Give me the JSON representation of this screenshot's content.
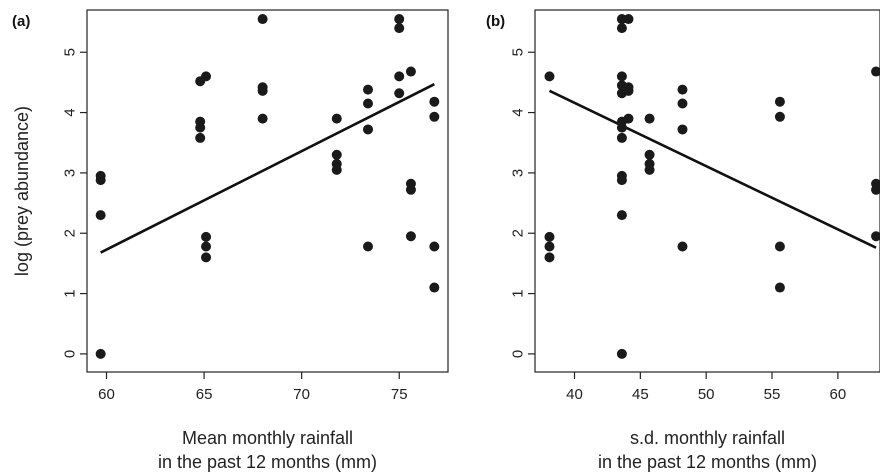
{
  "chart_data": [
    {
      "type": "scatter",
      "panel_label": "(a)",
      "xlabel": [
        "Mean monthly rainfall",
        "in the past 12 months (mm)"
      ],
      "ylabel": "log (prey abundance)",
      "xlim": [
        59,
        77.5
      ],
      "ylim": [
        -0.3,
        5.7
      ],
      "xticks": [
        60,
        65,
        70,
        75
      ],
      "yticks": [
        0,
        1,
        2,
        3,
        4,
        5
      ],
      "grid": false,
      "points": [
        [
          59.7,
          0.0
        ],
        [
          59.7,
          2.3
        ],
        [
          59.7,
          2.88
        ],
        [
          59.7,
          2.95
        ],
        [
          64.8,
          3.58
        ],
        [
          64.8,
          3.75
        ],
        [
          64.8,
          3.85
        ],
        [
          64.8,
          4.52
        ],
        [
          65.1,
          1.6
        ],
        [
          65.1,
          1.78
        ],
        [
          65.1,
          1.94
        ],
        [
          65.1,
          4.6
        ],
        [
          68.0,
          3.9
        ],
        [
          68.0,
          4.36
        ],
        [
          68.0,
          4.42
        ],
        [
          68.0,
          5.55
        ],
        [
          71.8,
          3.05
        ],
        [
          71.8,
          3.15
        ],
        [
          71.8,
          3.3
        ],
        [
          71.8,
          3.9
        ],
        [
          73.4,
          1.78
        ],
        [
          73.4,
          3.72
        ],
        [
          73.4,
          4.15
        ],
        [
          73.4,
          4.38
        ],
        [
          75.0,
          4.32
        ],
        [
          75.0,
          4.6
        ],
        [
          75.0,
          5.4
        ],
        [
          75.0,
          5.55
        ],
        [
          75.6,
          1.95
        ],
        [
          75.6,
          2.72
        ],
        [
          75.6,
          2.82
        ],
        [
          75.6,
          4.68
        ],
        [
          76.8,
          1.1
        ],
        [
          76.8,
          1.78
        ],
        [
          76.8,
          3.93
        ],
        [
          76.8,
          4.18
        ]
      ],
      "trend_line": [
        [
          59.7,
          1.68
        ],
        [
          76.8,
          4.47
        ]
      ]
    },
    {
      "type": "scatter",
      "panel_label": "(b)",
      "xlabel": [
        "s.d. monthly rainfall",
        "in the past 12 months (mm)"
      ],
      "ylabel": "",
      "xlim": [
        37,
        63.2
      ],
      "ylim": [
        -0.3,
        5.7
      ],
      "xticks": [
        40,
        45,
        50,
        55,
        60
      ],
      "yticks": [
        0,
        1,
        2,
        3,
        4,
        5
      ],
      "grid": false,
      "points": [
        [
          38.1,
          1.6
        ],
        [
          38.1,
          1.78
        ],
        [
          38.1,
          1.94
        ],
        [
          38.1,
          4.6
        ],
        [
          43.6,
          0.0
        ],
        [
          43.6,
          2.3
        ],
        [
          43.6,
          2.88
        ],
        [
          43.6,
          2.95
        ],
        [
          43.6,
          3.58
        ],
        [
          43.6,
          3.75
        ],
        [
          43.6,
          3.85
        ],
        [
          43.6,
          4.32
        ],
        [
          43.6,
          4.45
        ],
        [
          43.6,
          4.6
        ],
        [
          43.6,
          5.4
        ],
        [
          43.6,
          5.55
        ],
        [
          44.1,
          3.9
        ],
        [
          44.1,
          4.36
        ],
        [
          44.1,
          4.42
        ],
        [
          44.1,
          5.55
        ],
        [
          45.7,
          3.05
        ],
        [
          45.7,
          3.15
        ],
        [
          45.7,
          3.3
        ],
        [
          45.7,
          3.9
        ],
        [
          48.2,
          1.78
        ],
        [
          48.2,
          3.72
        ],
        [
          48.2,
          4.15
        ],
        [
          48.2,
          4.38
        ],
        [
          55.6,
          1.1
        ],
        [
          55.6,
          1.78
        ],
        [
          55.6,
          3.93
        ],
        [
          55.6,
          4.18
        ],
        [
          62.9,
          1.95
        ],
        [
          62.9,
          2.72
        ],
        [
          62.9,
          2.82
        ],
        [
          62.9,
          4.68
        ]
      ],
      "trend_line": [
        [
          38.1,
          4.36
        ],
        [
          62.9,
          1.76
        ]
      ]
    }
  ]
}
